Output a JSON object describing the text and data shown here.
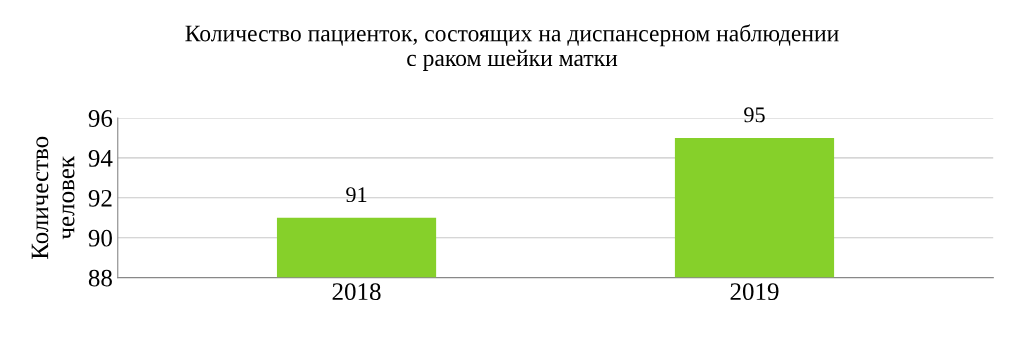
{
  "chart_data": {
    "type": "bar",
    "title": "Количество пациенток, состоящих на диспансерном наблюдении\nс раком шейки матки",
    "ylabel": "Количество\nчеловек",
    "categories": [
      "2018",
      "2019"
    ],
    "values": [
      91,
      95
    ],
    "color": "#86d02a",
    "ylim": [
      88,
      96
    ],
    "yticks": [
      88,
      90,
      92,
      94,
      96
    ],
    "grid": "y",
    "data_labels": true
  }
}
